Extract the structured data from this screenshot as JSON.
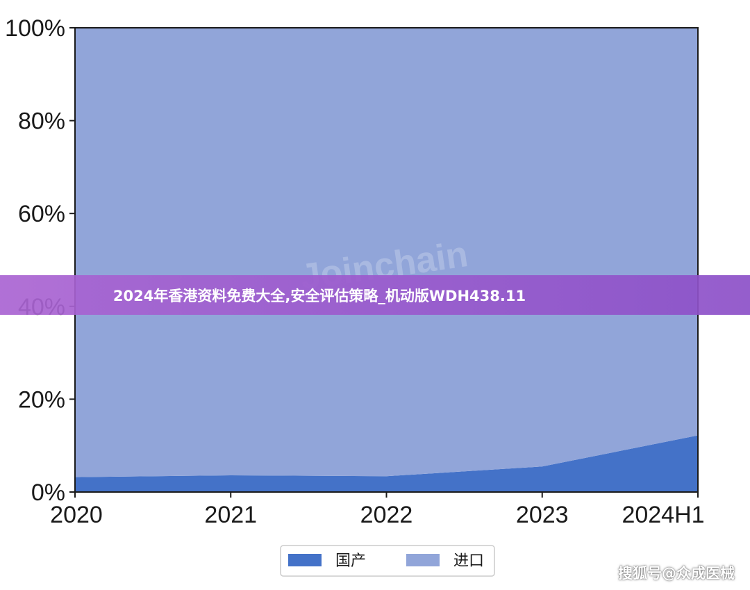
{
  "chart_data": {
    "type": "area",
    "stacked": true,
    "normalized": true,
    "categories": [
      "2020",
      "2021",
      "2022",
      "2023",
      "2024H1"
    ],
    "series": [
      {
        "name": "国产",
        "values": [
          3.2,
          3.6,
          3.4,
          5.5,
          12.2
        ],
        "color": "#4472c8"
      },
      {
        "name": "进口",
        "values": [
          96.8,
          96.4,
          96.6,
          94.5,
          87.8
        ],
        "color": "#91a5d9"
      }
    ],
    "yticks": [
      "0%",
      "20%",
      "40%",
      "60%",
      "80%",
      "100%"
    ],
    "ylim": [
      0,
      100
    ],
    "legend_position": "bottom",
    "grid": false
  },
  "watermark_text": "Joinchain",
  "banner_text": "2024年香港资料免费大全,安全评估策略_机动版WDH438.11",
  "credit_text": "搜狐号@众成医械"
}
